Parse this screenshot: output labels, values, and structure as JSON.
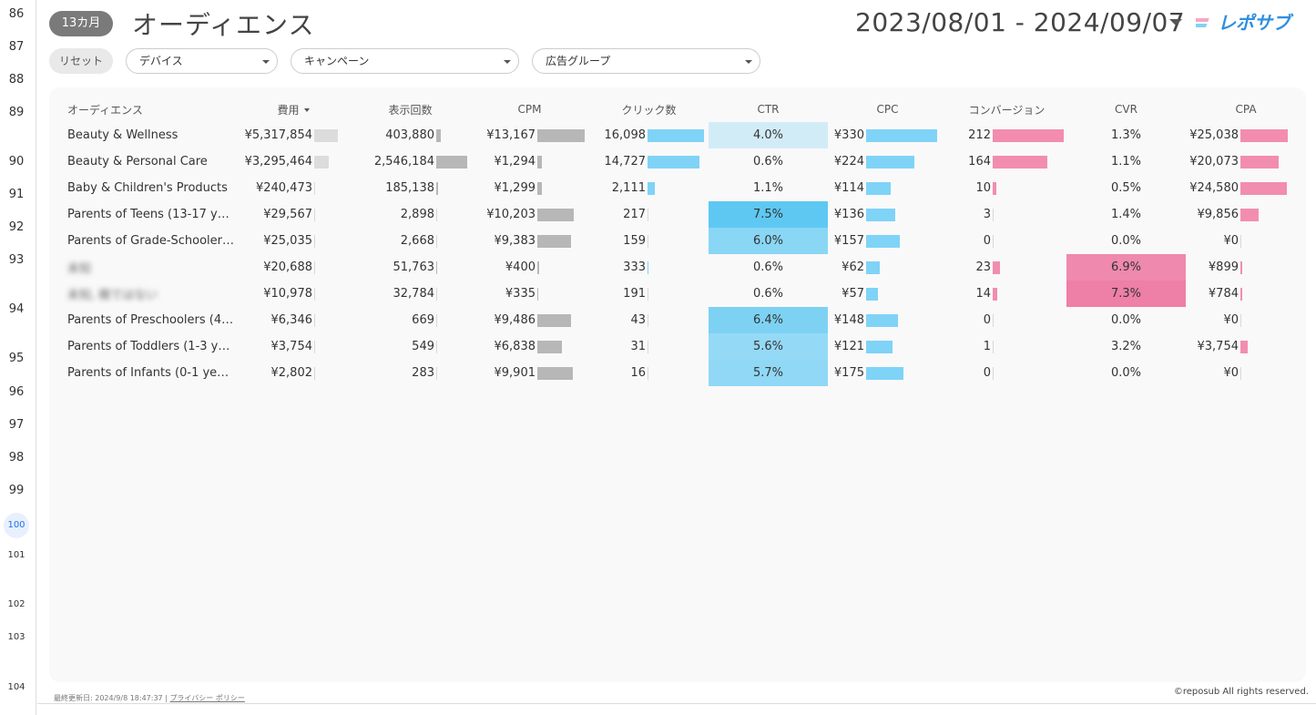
{
  "sheet": {
    "row_numbers": [
      "86",
      "87",
      "88",
      "89",
      "90",
      "91",
      "92",
      "93",
      "94",
      "95",
      "96",
      "97",
      "98",
      "99",
      "100",
      "101",
      "102",
      "103",
      "104"
    ],
    "selected_row": "100"
  },
  "header": {
    "period_pill": "13カ月",
    "title": "オーディエンス",
    "date_range": "2023/08/01 - 2024/09/07",
    "logo_text": "レポサブ"
  },
  "filters": {
    "reset_label": "リセット",
    "device_label": "デバイス",
    "campaign_label": "キャンペーン",
    "adgroup_label": "広告グループ"
  },
  "table": {
    "headers": [
      "オーディエンス",
      "費用",
      "表示回数",
      "CPM",
      "クリック数",
      "CTR",
      "CPC",
      "コンバージョン",
      "CVR",
      "CPA"
    ],
    "rows": [
      {
        "name": "Beauty & Wellness",
        "cost": "¥5,317,854",
        "cost_v": 5317854,
        "imp": "403,880",
        "imp_v": 403880,
        "cpm": "¥13,167",
        "cpm_v": 13167,
        "clicks": "16,098",
        "clicks_v": 16098,
        "ctr": "4.0%",
        "ctr_v": 4.0,
        "cpc": "¥330",
        "cpc_v": 330,
        "conv": "212",
        "conv_v": 212,
        "cvr": "1.3%",
        "cvr_v": 1.3,
        "cpa": "¥25,038",
        "cpa_v": 25038
      },
      {
        "name": "Beauty & Personal Care",
        "cost": "¥3,295,464",
        "cost_v": 3295464,
        "imp": "2,546,184",
        "imp_v": 2546184,
        "cpm": "¥1,294",
        "cpm_v": 1294,
        "clicks": "14,727",
        "clicks_v": 14727,
        "ctr": "0.6%",
        "ctr_v": 0.6,
        "cpc": "¥224",
        "cpc_v": 224,
        "conv": "164",
        "conv_v": 164,
        "cvr": "1.1%",
        "cvr_v": 1.1,
        "cpa": "¥20,073",
        "cpa_v": 20073
      },
      {
        "name": "Baby & Children's Products",
        "cost": "¥240,473",
        "cost_v": 240473,
        "imp": "185,138",
        "imp_v": 185138,
        "cpm": "¥1,299",
        "cpm_v": 1299,
        "clicks": "2,111",
        "clicks_v": 2111,
        "ctr": "1.1%",
        "ctr_v": 1.1,
        "cpc": "¥114",
        "cpc_v": 114,
        "conv": "10",
        "conv_v": 10,
        "cvr": "0.5%",
        "cvr_v": 0.5,
        "cpa": "¥24,580",
        "cpa_v": 24580
      },
      {
        "name": "Parents of Teens (13-17 ye…",
        "cost": "¥29,567",
        "cost_v": 29567,
        "imp": "2,898",
        "imp_v": 2898,
        "cpm": "¥10,203",
        "cpm_v": 10203,
        "clicks": "217",
        "clicks_v": 217,
        "ctr": "7.5%",
        "ctr_v": 7.5,
        "cpc": "¥136",
        "cpc_v": 136,
        "conv": "3",
        "conv_v": 3,
        "cvr": "1.4%",
        "cvr_v": 1.4,
        "cpa": "¥9,856",
        "cpa_v": 9856
      },
      {
        "name": "Parents of Grade-Schooler…",
        "cost": "¥25,035",
        "cost_v": 25035,
        "imp": "2,668",
        "imp_v": 2668,
        "cpm": "¥9,383",
        "cpm_v": 9383,
        "clicks": "159",
        "clicks_v": 159,
        "ctr": "6.0%",
        "ctr_v": 6.0,
        "cpc": "¥157",
        "cpc_v": 157,
        "conv": "0",
        "conv_v": 0,
        "cvr": "0.0%",
        "cvr_v": 0.0,
        "cpa": "¥0",
        "cpa_v": 0
      },
      {
        "name": "未知",
        "blurred": true,
        "cost": "¥20,688",
        "cost_v": 20688,
        "imp": "51,763",
        "imp_v": 51763,
        "cpm": "¥400",
        "cpm_v": 400,
        "clicks": "333",
        "clicks_v": 333,
        "ctr": "0.6%",
        "ctr_v": 0.6,
        "cpc": "¥62",
        "cpc_v": 62,
        "conv": "23",
        "conv_v": 23,
        "cvr": "6.9%",
        "cvr_v": 6.9,
        "cpa": "¥899",
        "cpa_v": 899
      },
      {
        "name": "未知, 親ではない",
        "blurred": true,
        "cost": "¥10,978",
        "cost_v": 10978,
        "imp": "32,784",
        "imp_v": 32784,
        "cpm": "¥335",
        "cpm_v": 335,
        "clicks": "191",
        "clicks_v": 191,
        "ctr": "0.6%",
        "ctr_v": 0.6,
        "cpc": "¥57",
        "cpc_v": 57,
        "conv": "14",
        "conv_v": 14,
        "cvr": "7.3%",
        "cvr_v": 7.3,
        "cpa": "¥784",
        "cpa_v": 784
      },
      {
        "name": "Parents of Preschoolers (4-…",
        "cost": "¥6,346",
        "cost_v": 6346,
        "imp": "669",
        "imp_v": 669,
        "cpm": "¥9,486",
        "cpm_v": 9486,
        "clicks": "43",
        "clicks_v": 43,
        "ctr": "6.4%",
        "ctr_v": 6.4,
        "cpc": "¥148",
        "cpc_v": 148,
        "conv": "0",
        "conv_v": 0,
        "cvr": "0.0%",
        "cvr_v": 0.0,
        "cpa": "¥0",
        "cpa_v": 0
      },
      {
        "name": "Parents of Toddlers (1-3 ye…",
        "cost": "¥3,754",
        "cost_v": 3754,
        "imp": "549",
        "imp_v": 549,
        "cpm": "¥6,838",
        "cpm_v": 6838,
        "clicks": "31",
        "clicks_v": 31,
        "ctr": "5.6%",
        "ctr_v": 5.6,
        "cpc": "¥121",
        "cpc_v": 121,
        "conv": "1",
        "conv_v": 1,
        "cvr": "3.2%",
        "cvr_v": 3.2,
        "cpa": "¥3,754",
        "cpa_v": 3754
      },
      {
        "name": "Parents of Infants (0-1 years)",
        "cost": "¥2,802",
        "cost_v": 2802,
        "imp": "283",
        "imp_v": 283,
        "cpm": "¥9,901",
        "cpm_v": 9901,
        "clicks": "16",
        "clicks_v": 16,
        "ctr": "5.7%",
        "ctr_v": 5.7,
        "cpc": "¥175",
        "cpc_v": 175,
        "conv": "0",
        "conv_v": 0,
        "cvr": "0.0%",
        "cvr_v": 0.0,
        "cpa": "¥0",
        "cpa_v": 0
      }
    ]
  },
  "colors": {
    "gray_bar": "#b7b7b7",
    "light_gray_bar": "#dcdcdc",
    "blue_bar": "#7fd3f7",
    "pink_bar": "#f28db0",
    "ctr_heat": "#5ec8f3",
    "cvr_heat": "#ee7fa6"
  },
  "footer": {
    "updated": "最終更新日: 2024/9/8 18:47:37",
    "separator": "|",
    "privacy": "プライバシー ポリシー",
    "copyright": "©reposub All rights reserved."
  }
}
